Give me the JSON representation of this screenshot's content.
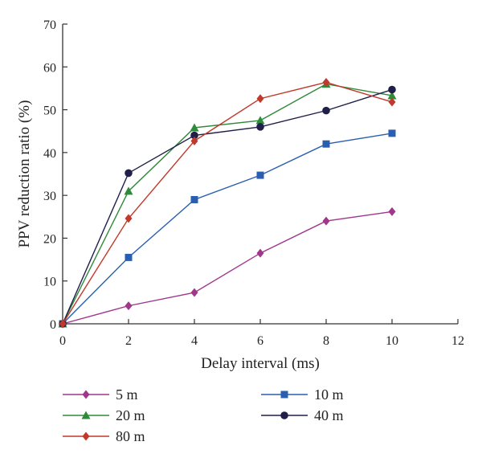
{
  "chart_data": {
    "type": "line",
    "title": "",
    "xlabel": "Delay interval (ms)",
    "ylabel": "PPV reduction ratio (%)",
    "xlim": [
      0,
      12
    ],
    "ylim": [
      0,
      70
    ],
    "xticks": [
      0,
      2,
      4,
      6,
      8,
      10,
      12
    ],
    "yticks": [
      0,
      10,
      20,
      30,
      40,
      50,
      60,
      70
    ],
    "grid": false,
    "legend_position": "bottom",
    "x": [
      0,
      2,
      4,
      6,
      8,
      10
    ],
    "series": [
      {
        "name": "5 m",
        "color": "#a0378c",
        "marker": "diamond",
        "values": [
          0,
          4.2,
          7.3,
          16.5,
          24.0,
          26.2
        ]
      },
      {
        "name": "10 m",
        "color": "#2a5fb0",
        "marker": "square",
        "values": [
          0,
          15.5,
          29.0,
          34.7,
          42.0,
          44.5
        ]
      },
      {
        "name": "20 m",
        "color": "#2f8a3a",
        "marker": "triangle",
        "values": [
          0,
          31.0,
          45.8,
          47.5,
          56.0,
          53.3
        ]
      },
      {
        "name": "40 m",
        "color": "#1f1f4a",
        "marker": "circle",
        "values": [
          0,
          35.2,
          44.0,
          46.0,
          49.8,
          54.7
        ]
      },
      {
        "name": "80 m",
        "color": "#c0392b",
        "marker": "diamond",
        "values": [
          0,
          24.6,
          42.7,
          52.6,
          56.4,
          51.8
        ]
      }
    ]
  }
}
